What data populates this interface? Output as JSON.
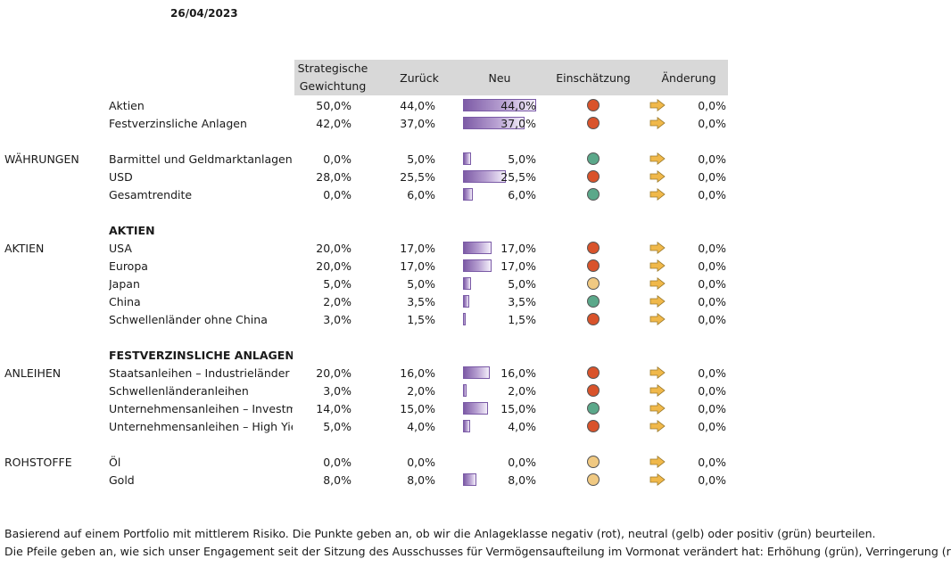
{
  "date": "26/04/2023",
  "headers": {
    "strategic_line1": "Strategische",
    "strategic_line2": "Gewichtung",
    "previous": "Zurück",
    "new": "Neu",
    "assessment": "Einschätzung",
    "change": "Änderung"
  },
  "colors": {
    "negative": "#d9532b",
    "neutral": "#f0c982",
    "positive": "#5ba88a",
    "arrow": "#f0b84a",
    "bar": "#7d5ba6"
  },
  "icons": {
    "change_arrow": "right-arrow-icon"
  },
  "rows": [
    {
      "type": "data",
      "category": "",
      "label": "Aktien",
      "strategic": "50,0%",
      "previous": "44,0%",
      "new_text": "44,0%",
      "new_value": 44.0,
      "assessment": "negative",
      "change": "0,0%"
    },
    {
      "type": "data",
      "category": "",
      "label": "Festverzinsliche Anlagen",
      "strategic": "42,0%",
      "previous": "37,0%",
      "new_text": "37,0%",
      "new_value": 37.0,
      "assessment": "negative",
      "change": "0,0%"
    },
    {
      "type": "blank"
    },
    {
      "type": "data",
      "category": "WÄHRUNGEN",
      "label": "Barmittel und Geldmarktanlagen",
      "strategic": "0,0%",
      "previous": "5,0%",
      "new_text": "5,0%",
      "new_value": 5.0,
      "assessment": "positive",
      "change": "0,0%"
    },
    {
      "type": "data",
      "category": "",
      "label": "USD",
      "strategic": "28,0%",
      "previous": "25,5%",
      "new_text": "25,5%",
      "new_value": 25.5,
      "assessment": "negative",
      "change": "0,0%"
    },
    {
      "type": "data",
      "category": "",
      "label": "Gesamtrendite",
      "strategic": "0,0%",
      "previous": "6,0%",
      "new_text": "6,0%",
      "new_value": 6.0,
      "assessment": "positive",
      "change": "0,0%"
    },
    {
      "type": "blank"
    },
    {
      "type": "section",
      "label": "AKTIEN"
    },
    {
      "type": "data",
      "category": "AKTIEN",
      "label": "USA",
      "strategic": "20,0%",
      "previous": "17,0%",
      "new_text": "17,0%",
      "new_value": 17.0,
      "assessment": "negative",
      "change": "0,0%"
    },
    {
      "type": "data",
      "category": "",
      "label": "Europa",
      "strategic": "20,0%",
      "previous": "17,0%",
      "new_text": "17,0%",
      "new_value": 17.0,
      "assessment": "negative",
      "change": "0,0%"
    },
    {
      "type": "data",
      "category": "",
      "label": "Japan",
      "strategic": "5,0%",
      "previous": "5,0%",
      "new_text": "5,0%",
      "new_value": 5.0,
      "assessment": "neutral",
      "change": "0,0%"
    },
    {
      "type": "data",
      "category": "",
      "label": "China",
      "strategic": "2,0%",
      "previous": "3,5%",
      "new_text": "3,5%",
      "new_value": 3.5,
      "assessment": "positive",
      "change": "0,0%"
    },
    {
      "type": "data",
      "category": "",
      "label": "Schwellenländer ohne China",
      "strategic": "3,0%",
      "previous": "1,5%",
      "new_text": "1,5%",
      "new_value": 1.5,
      "assessment": "negative",
      "change": "0,0%"
    },
    {
      "type": "blank"
    },
    {
      "type": "section",
      "label": "FESTVERZINSLICHE ANLAGEN"
    },
    {
      "type": "data",
      "category": "ANLEIHEN",
      "label": "Staatsanleihen – Industrieländer",
      "strategic": "20,0%",
      "previous": "16,0%",
      "new_text": "16,0%",
      "new_value": 16.0,
      "assessment": "negative",
      "change": "0,0%"
    },
    {
      "type": "data",
      "category": "",
      "label": "Schwellenländeranleihen",
      "strategic": "3,0%",
      "previous": "2,0%",
      "new_text": "2,0%",
      "new_value": 2.0,
      "assessment": "negative",
      "change": "0,0%"
    },
    {
      "type": "data",
      "category": "",
      "label": "Unternehmensanleihen – Investm",
      "strategic": "14,0%",
      "previous": "15,0%",
      "new_text": "15,0%",
      "new_value": 15.0,
      "assessment": "positive",
      "change": "0,0%"
    },
    {
      "type": "data",
      "category": "",
      "label": "Unternehmensanleihen – High Yie",
      "strategic": "5,0%",
      "previous": "4,0%",
      "new_text": "4,0%",
      "new_value": 4.0,
      "assessment": "negative",
      "change": "0,0%"
    },
    {
      "type": "blank"
    },
    {
      "type": "data",
      "category": "ROHSTOFFE",
      "label": "Öl",
      "strategic": "0,0%",
      "previous": "0,0%",
      "new_text": "0,0%",
      "new_value": 0.0,
      "assessment": "neutral",
      "change": "0,0%"
    },
    {
      "type": "data",
      "category": "",
      "label": "Gold",
      "strategic": "8,0%",
      "previous": "8,0%",
      "new_text": "8,0%",
      "new_value": 8.0,
      "assessment": "neutral",
      "change": "0,0%"
    }
  ],
  "footnotes": [
    "Basierend auf einem Portfolio mit mittlerem Risiko. Die Punkte geben an, ob wir die Anlageklasse negativ (rot), neutral (gelb) oder positiv (grün) beurteilen.",
    "Die Pfeile geben an, wie sich unser Engagement seit der Sitzung des Ausschusses für Vermögensaufteilung im Vormonat verändert hat: Erhöhung (grün), Verringerung (rot)"
  ]
}
